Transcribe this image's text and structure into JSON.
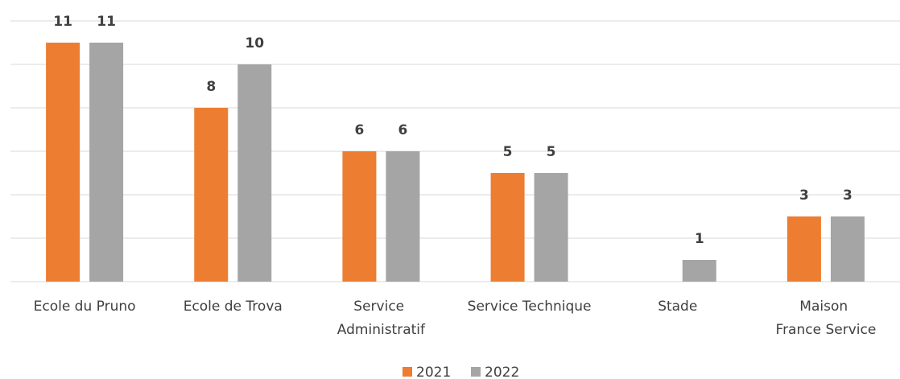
{
  "chart_data": {
    "type": "bar",
    "categories": [
      "Ecole du Pruno",
      "Ecole de Trova",
      "Service Administratif",
      "Service Technique",
      "Stade",
      "Maison France Service"
    ],
    "series": [
      {
        "name": "2021",
        "color": "#ed7d31",
        "values": [
          11,
          8,
          6,
          5,
          null,
          3
        ]
      },
      {
        "name": "2022",
        "color": "#a5a5a5",
        "values": [
          11,
          10,
          6,
          5,
          1,
          3
        ]
      }
    ],
    "ylim": [
      0,
      12
    ],
    "yticks": [
      0,
      2,
      4,
      6,
      8,
      10,
      12
    ],
    "grid": true,
    "legend": "bottom"
  }
}
